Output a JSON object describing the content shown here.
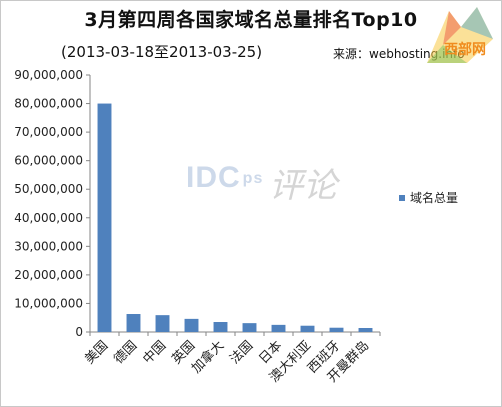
{
  "title": "3月第四周各国家域名总量排名Top10",
  "subtitle": "(2013-03-18至2013-03-25)",
  "source": "来源：webhosting.info",
  "watermark": {
    "main": "IDC",
    "suffix": "ps",
    "glyphs": "评论"
  },
  "site_logo": "西部网",
  "chart_data": {
    "type": "bar",
    "categories": [
      "美国",
      "德国",
      "中国",
      "英国",
      "加拿大",
      "法国",
      "日本",
      "澳大利亚",
      "西班牙",
      "开曼群岛"
    ],
    "series": [
      {
        "name": "域名总量",
        "values": [
          80000000,
          6300000,
          5900000,
          4600000,
          3500000,
          3100000,
          2500000,
          2200000,
          1500000,
          1400000
        ]
      }
    ],
    "ylim": [
      0,
      90000000
    ],
    "ytick_labels": [
      "0",
      "10,000,000",
      "20,000,000",
      "30,000,000",
      "40,000,000",
      "50,000,000",
      "60,000,000",
      "70,000,000",
      "80,000,000",
      "90,000,000"
    ],
    "bar_color": "#4f81bd",
    "grid": false,
    "legend_position": "right"
  }
}
